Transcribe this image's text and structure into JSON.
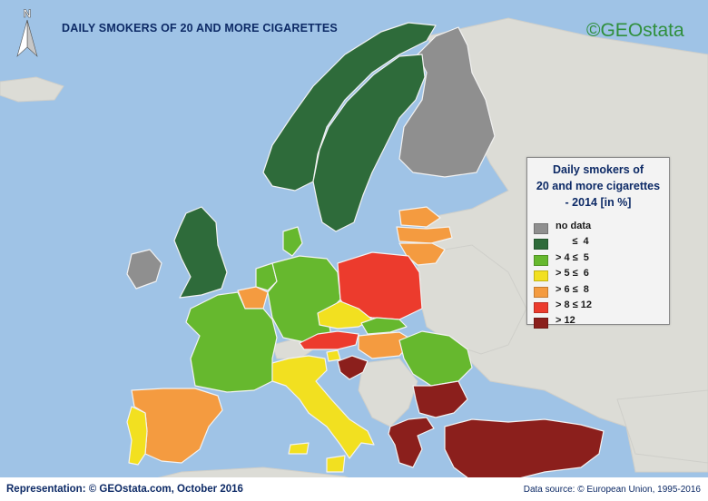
{
  "title": "DAILY SMOKERS OF 20 AND MORE CIGARETTES",
  "brand": "©GEOstata",
  "compass": "N",
  "legend": {
    "title_lines": [
      "Daily smokers of",
      "20 and more cigarettes",
      "- 2014 [in %]"
    ],
    "items": [
      {
        "label": "no data",
        "color": "#8f8f8f"
      },
      {
        "label": "      ≤  4",
        "color": "#2e6b3a"
      },
      {
        "label": "> 4 ≤  5",
        "color": "#66b82e"
      },
      {
        "label": "> 5 ≤  6",
        "color": "#f2e020"
      },
      {
        "label": "> 6 ≤  8",
        "color": "#f49b40"
      },
      {
        "label": "> 8 ≤ 12",
        "color": "#ec3b2d"
      },
      {
        "label": "> 12",
        "color": "#8b1f1c"
      }
    ]
  },
  "countries": [
    {
      "name": "Finland",
      "class": "no data"
    },
    {
      "name": "Norway",
      "class": "≤ 4"
    },
    {
      "name": "Sweden",
      "class": "≤ 4"
    },
    {
      "name": "United Kingdom",
      "class": "≤ 4"
    },
    {
      "name": "Estonia",
      "class": "> 6 ≤ 8"
    },
    {
      "name": "Latvia",
      "class": "> 6 ≤ 8"
    },
    {
      "name": "Lithuania",
      "class": "> 6 ≤ 8"
    },
    {
      "name": "Ireland",
      "class": "no data"
    },
    {
      "name": "Netherlands",
      "class": "> 4 ≤ 5"
    },
    {
      "name": "Belgium",
      "class": "> 6 ≤ 8"
    },
    {
      "name": "Germany",
      "class": "> 4 ≤ 5"
    },
    {
      "name": "Poland",
      "class": "> 8 ≤ 12"
    },
    {
      "name": "France",
      "class": "> 4 ≤ 5"
    },
    {
      "name": "Czechia",
      "class": "> 5 ≤ 6"
    },
    {
      "name": "Slovakia",
      "class": "> 4 ≤ 5"
    },
    {
      "name": "Austria",
      "class": "> 8 ≤ 12"
    },
    {
      "name": "Hungary",
      "class": "> 6 ≤ 8"
    },
    {
      "name": "Romania",
      "class": "> 4 ≤ 5"
    },
    {
      "name": "Italy",
      "class": "> 5 ≤ 6"
    },
    {
      "name": "Slovenia",
      "class": "> 5 ≤ 6"
    },
    {
      "name": "Spain",
      "class": "> 6 ≤ 8"
    },
    {
      "name": "Portugal",
      "class": "> 5 ≤ 6"
    },
    {
      "name": "Bulgaria",
      "class": "> 12"
    },
    {
      "name": "Greece",
      "class": "> 12"
    },
    {
      "name": "Turkey",
      "class": "> 12"
    },
    {
      "name": "Croatia",
      "class": "> 12"
    },
    {
      "name": "Denmark",
      "class": "> 4 ≤ 5"
    }
  ],
  "footer": {
    "left": "Representation: © GEOstata.com, October 2016",
    "right": "Data source: © European Union, 1995-2016"
  }
}
